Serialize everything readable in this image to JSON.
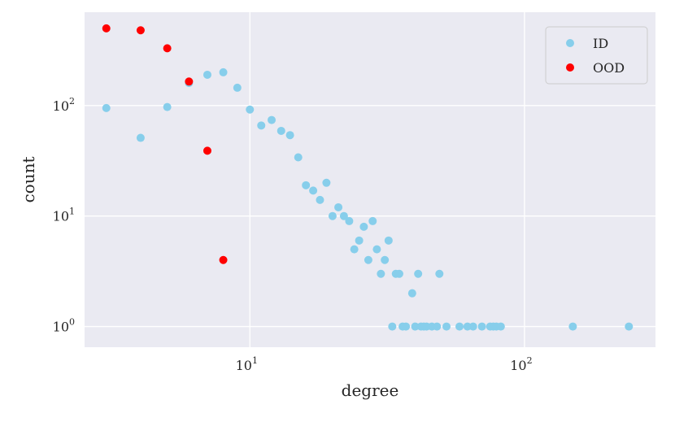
{
  "chart_data": {
    "type": "scatter",
    "title": "",
    "xlabel": "degree",
    "ylabel": "count",
    "xscale": "log",
    "yscale": "log",
    "xlim": [
      2.5,
      300
    ],
    "ylim": [
      0.65,
      700
    ],
    "grid": true,
    "legend_position": "top-right",
    "background_color": "#eaeaf2",
    "x_ticks": [
      {
        "base": "10",
        "exp": "1",
        "value": 10
      },
      {
        "base": "10",
        "exp": "2",
        "value": 100
      }
    ],
    "y_ticks": [
      {
        "base": "10",
        "exp": "0",
        "value": 1
      },
      {
        "base": "10",
        "exp": "1",
        "value": 10
      },
      {
        "base": "10",
        "exp": "2",
        "value": 100
      }
    ],
    "series": [
      {
        "name": "ID",
        "color": "#87ceeb",
        "points": [
          [
            3,
            95
          ],
          [
            4,
            51
          ],
          [
            5,
            97
          ],
          [
            6,
            160
          ],
          [
            7,
            190
          ],
          [
            8,
            200
          ],
          [
            9,
            145
          ],
          [
            10,
            92
          ],
          [
            11,
            66
          ],
          [
            12,
            74
          ],
          [
            13,
            59
          ],
          [
            14,
            54
          ],
          [
            15,
            34
          ],
          [
            16,
            19
          ],
          [
            17,
            17
          ],
          [
            18,
            14
          ],
          [
            19,
            20
          ],
          [
            20,
            10
          ],
          [
            21,
            12
          ],
          [
            22,
            10
          ],
          [
            23,
            9
          ],
          [
            24,
            5
          ],
          [
            25,
            6
          ],
          [
            26,
            8
          ],
          [
            27,
            4
          ],
          [
            28,
            9
          ],
          [
            29,
            5
          ],
          [
            30,
            3
          ],
          [
            31,
            4
          ],
          [
            32,
            6
          ],
          [
            34,
            3
          ],
          [
            35,
            3
          ],
          [
            39,
            2
          ],
          [
            41,
            3
          ],
          [
            49,
            3
          ],
          [
            33,
            1
          ],
          [
            36,
            1
          ],
          [
            37,
            1
          ],
          [
            40,
            1
          ],
          [
            42,
            1
          ],
          [
            43,
            1
          ],
          [
            44,
            1
          ],
          [
            46,
            1
          ],
          [
            48,
            1
          ],
          [
            52,
            1
          ],
          [
            58,
            1
          ],
          [
            62,
            1
          ],
          [
            65,
            1
          ],
          [
            70,
            1
          ],
          [
            75,
            1
          ],
          [
            77,
            1
          ],
          [
            79,
            1
          ],
          [
            82,
            1
          ],
          [
            150,
            1
          ],
          [
            240,
            1
          ]
        ]
      },
      {
        "name": "OOD",
        "color": "#ff0000",
        "points": [
          [
            3,
            500
          ],
          [
            4,
            480
          ],
          [
            5,
            330
          ],
          [
            6,
            165
          ],
          [
            7,
            39
          ],
          [
            8,
            4
          ]
        ]
      }
    ]
  }
}
